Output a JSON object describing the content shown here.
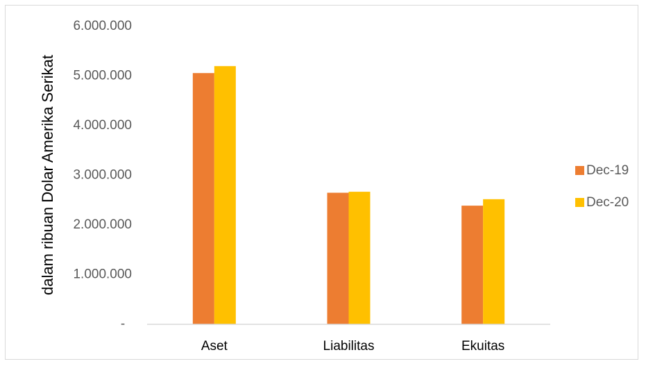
{
  "chart_data": {
    "type": "bar",
    "title": "",
    "xlabel": "",
    "ylabel": "dalam ribuan Dolar Amerika Serikat",
    "categories": [
      "Aset",
      "Liabilitas",
      "Ekuitas"
    ],
    "series": [
      {
        "name": "Dec-19",
        "values": [
          5060000,
          2650000,
          2390000
        ],
        "color": "#ED7D31"
      },
      {
        "name": "Dec-20",
        "values": [
          5200000,
          2670000,
          2520000
        ],
        "color": "#FFC000"
      }
    ],
    "ylim": [
      0,
      6000000
    ],
    "yticks": [
      0,
      1000000,
      2000000,
      3000000,
      4000000,
      5000000,
      6000000
    ],
    "ytick_labels": [
      "-",
      "1.000.000",
      "2.000.000",
      "3.000.000",
      "4.000.000",
      "5.000.000",
      "6.000.000"
    ],
    "grid": false,
    "legend_position": "right"
  }
}
